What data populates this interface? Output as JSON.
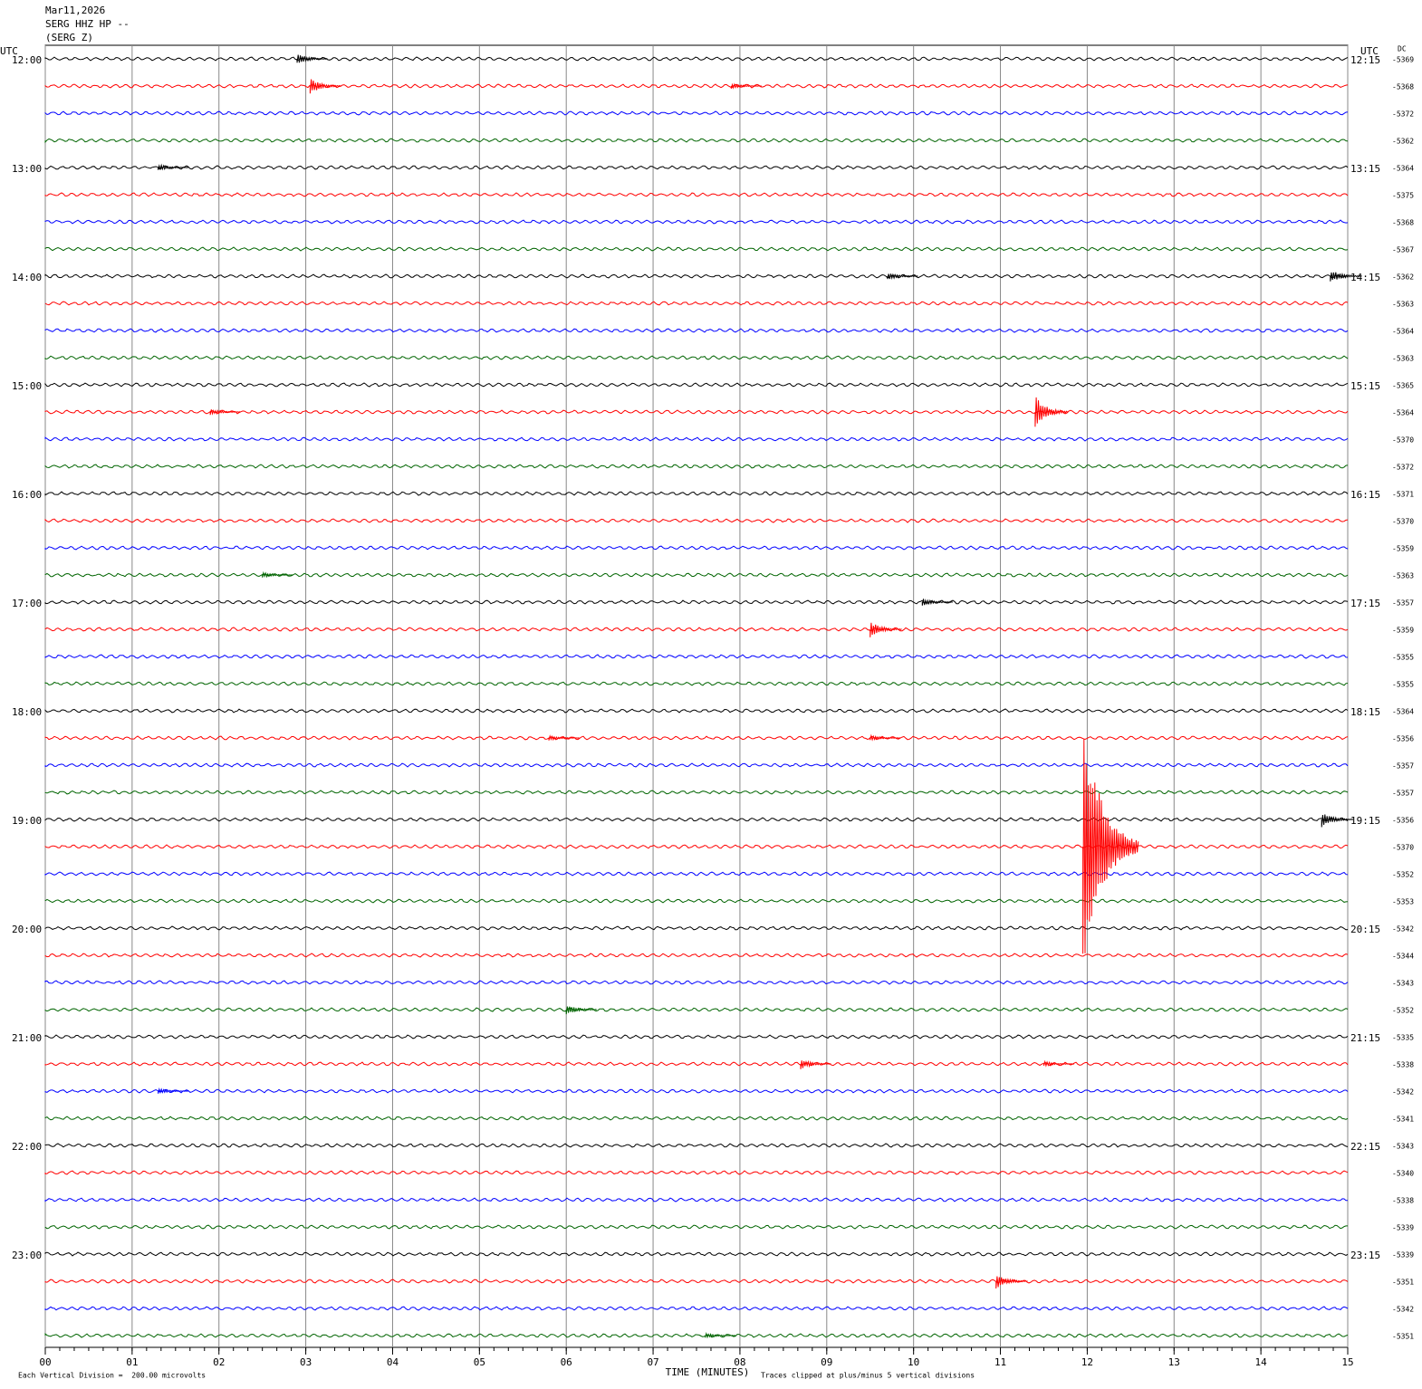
{
  "chart_data": {
    "type": "helicorder",
    "date": "Mar11,2026",
    "station": "SERG HHZ HP --",
    "channel": "(SERG Z)",
    "left_axis_label": "UTC",
    "right_axis_label": "UTC",
    "dc_label": "DC",
    "x_label": "TIME (MINUTES)",
    "scale_note": "Each Vertical Division =  200.00 microvolts",
    "clip_note": "Traces clipped at plus/minus 5 vertical divisions",
    "xlim": [
      0,
      15
    ],
    "xticks": [
      {
        "value": 0,
        "label": "00"
      },
      {
        "value": 1,
        "label": "01"
      },
      {
        "value": 2,
        "label": "02"
      },
      {
        "value": 3,
        "label": "03"
      },
      {
        "value": 4,
        "label": "04"
      },
      {
        "value": 5,
        "label": "05"
      },
      {
        "value": 6,
        "label": "06"
      },
      {
        "value": 7,
        "label": "07"
      },
      {
        "value": 8,
        "label": "08"
      },
      {
        "value": 9,
        "label": "09"
      },
      {
        "value": 10,
        "label": "10"
      },
      {
        "value": 11,
        "label": "11"
      },
      {
        "value": 12,
        "label": "12"
      },
      {
        "value": 13,
        "label": "13"
      },
      {
        "value": 14,
        "label": "14"
      },
      {
        "value": 15,
        "label": "15"
      }
    ],
    "grid": true,
    "trace_colors": [
      "#000000",
      "#ff0000",
      "#0000ff",
      "#006400"
    ],
    "left_labels": [
      "12:00",
      "13:00",
      "14:00",
      "15:00",
      "16:00",
      "17:00",
      "18:00",
      "19:00",
      "20:00",
      "21:00",
      "22:00",
      "23:00"
    ],
    "right_labels": [
      "12:15",
      "13:15",
      "14:15",
      "15:15",
      "16:15",
      "17:15",
      "18:15",
      "19:15",
      "20:15",
      "21:15",
      "22:15",
      "23:15"
    ],
    "dc_values": [
      -5369,
      -5368,
      -5372,
      -5362,
      -5364,
      -5375,
      -5368,
      -5367,
      -5362,
      -5363,
      -5364,
      -5363,
      -5365,
      -5364,
      -5370,
      -5372,
      -5371,
      -5370,
      -5359,
      -5363,
      -5357,
      -5359,
      -5355,
      -5355,
      -5364,
      -5356,
      -5357,
      -5357,
      -5356,
      -5370,
      -5352,
      -5353,
      -5342,
      -5344,
      -5343,
      -5352,
      -5335,
      -5338,
      -5342,
      -5341,
      -5343,
      -5340,
      -5338,
      -5339,
      -5339,
      -5351,
      -5342,
      -5351
    ],
    "events": [
      {
        "trace": 0,
        "minute": 2.9,
        "amplitude": 0.2
      },
      {
        "trace": 1,
        "minute": 3.05,
        "amplitude": 0.3
      },
      {
        "trace": 1,
        "minute": 7.9,
        "amplitude": 0.1
      },
      {
        "trace": 4,
        "minute": 1.3,
        "amplitude": 0.12
      },
      {
        "trace": 8,
        "minute": 9.7,
        "amplitude": 0.15
      },
      {
        "trace": 8,
        "minute": 14.8,
        "amplitude": 0.25
      },
      {
        "trace": 13,
        "minute": 1.9,
        "amplitude": 0.12
      },
      {
        "trace": 13,
        "minute": 11.4,
        "amplitude": 0.6
      },
      {
        "trace": 19,
        "minute": 2.5,
        "amplitude": 0.1
      },
      {
        "trace": 20,
        "minute": 10.1,
        "amplitude": 0.15
      },
      {
        "trace": 21,
        "minute": 9.5,
        "amplitude": 0.3
      },
      {
        "trace": 25,
        "minute": 5.8,
        "amplitude": 0.1
      },
      {
        "trace": 25,
        "minute": 9.5,
        "amplitude": 0.1
      },
      {
        "trace": 28,
        "minute": 14.7,
        "amplitude": 0.3
      },
      {
        "trace": 29,
        "minute": 11.95,
        "amplitude": 5
      },
      {
        "trace": 35,
        "minute": 6.0,
        "amplitude": 0.2
      },
      {
        "trace": 37,
        "minute": 8.7,
        "amplitude": 0.2
      },
      {
        "trace": 37,
        "minute": 11.5,
        "amplitude": 0.1
      },
      {
        "trace": 38,
        "minute": 1.3,
        "amplitude": 0.1
      },
      {
        "trace": 45,
        "minute": 10.95,
        "amplitude": 0.3
      },
      {
        "trace": 47,
        "minute": 7.6,
        "amplitude": 0.1
      }
    ]
  }
}
